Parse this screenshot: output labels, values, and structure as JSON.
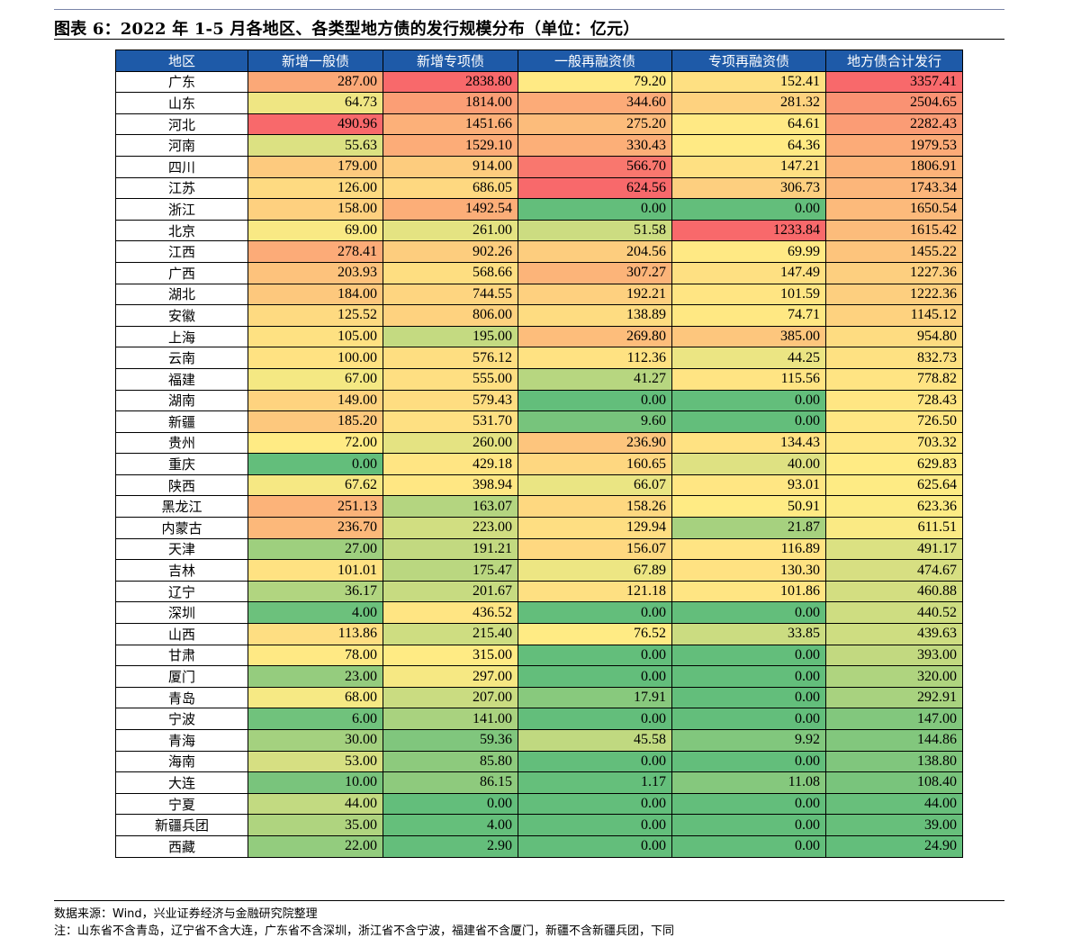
{
  "title": "图表 6：2022 年 1-5 月各地区、各类型地方债的发行规模分布（单位：亿元）",
  "table": {
    "headers": [
      "地区",
      "新增一般债",
      "新增专项债",
      "一般再融资债",
      "专项再融资债",
      "地方债合计发行"
    ],
    "rows": [
      [
        "广东",
        "287.00",
        "2838.80",
        "79.20",
        "152.41",
        "3357.41"
      ],
      [
        "山东",
        "64.73",
        "1814.00",
        "344.60",
        "281.32",
        "2504.65"
      ],
      [
        "河北",
        "490.96",
        "1451.66",
        "275.20",
        "64.61",
        "2282.43"
      ],
      [
        "河南",
        "55.63",
        "1529.10",
        "330.43",
        "64.36",
        "1979.53"
      ],
      [
        "四川",
        "179.00",
        "914.00",
        "566.70",
        "147.21",
        "1806.91"
      ],
      [
        "江苏",
        "126.00",
        "686.05",
        "624.56",
        "306.73",
        "1743.34"
      ],
      [
        "浙江",
        "158.00",
        "1492.54",
        "0.00",
        "0.00",
        "1650.54"
      ],
      [
        "北京",
        "69.00",
        "261.00",
        "51.58",
        "1233.84",
        "1615.42"
      ],
      [
        "江西",
        "278.41",
        "902.26",
        "204.56",
        "69.99",
        "1455.22"
      ],
      [
        "广西",
        "203.93",
        "568.66",
        "307.27",
        "147.49",
        "1227.36"
      ],
      [
        "湖北",
        "184.00",
        "744.55",
        "192.21",
        "101.59",
        "1222.36"
      ],
      [
        "安徽",
        "125.52",
        "806.00",
        "138.89",
        "74.71",
        "1145.12"
      ],
      [
        "上海",
        "105.00",
        "195.00",
        "269.80",
        "385.00",
        "954.80"
      ],
      [
        "云南",
        "100.00",
        "576.12",
        "112.36",
        "44.25",
        "832.73"
      ],
      [
        "福建",
        "67.00",
        "555.00",
        "41.27",
        "115.56",
        "778.82"
      ],
      [
        "湖南",
        "149.00",
        "579.43",
        "0.00",
        "0.00",
        "728.43"
      ],
      [
        "新疆",
        "185.20",
        "531.70",
        "9.60",
        "0.00",
        "726.50"
      ],
      [
        "贵州",
        "72.00",
        "260.00",
        "236.90",
        "134.43",
        "703.32"
      ],
      [
        "重庆",
        "0.00",
        "429.18",
        "160.65",
        "40.00",
        "629.83"
      ],
      [
        "陕西",
        "67.62",
        "398.94",
        "66.07",
        "93.01",
        "625.64"
      ],
      [
        "黑龙江",
        "251.13",
        "163.07",
        "158.26",
        "50.91",
        "623.36"
      ],
      [
        "内蒙古",
        "236.70",
        "223.00",
        "129.94",
        "21.87",
        "611.51"
      ],
      [
        "天津",
        "27.00",
        "191.21",
        "156.07",
        "116.89",
        "491.17"
      ],
      [
        "吉林",
        "101.01",
        "175.47",
        "67.89",
        "130.30",
        "474.67"
      ],
      [
        "辽宁",
        "36.17",
        "201.67",
        "121.18",
        "101.86",
        "460.88"
      ],
      [
        "深圳",
        "4.00",
        "436.52",
        "0.00",
        "0.00",
        "440.52"
      ],
      [
        "山西",
        "113.86",
        "215.40",
        "76.52",
        "33.85",
        "439.63"
      ],
      [
        "甘肃",
        "78.00",
        "315.00",
        "0.00",
        "0.00",
        "393.00"
      ],
      [
        "厦门",
        "23.00",
        "297.00",
        "0.00",
        "0.00",
        "320.00"
      ],
      [
        "青岛",
        "68.00",
        "207.00",
        "17.91",
        "0.00",
        "292.91"
      ],
      [
        "宁波",
        "6.00",
        "141.00",
        "0.00",
        "0.00",
        "147.00"
      ],
      [
        "青海",
        "30.00",
        "59.36",
        "45.58",
        "9.92",
        "144.86"
      ],
      [
        "海南",
        "53.00",
        "85.80",
        "0.00",
        "0.00",
        "138.80"
      ],
      [
        "大连",
        "10.00",
        "86.15",
        "1.17",
        "11.08",
        "108.40"
      ],
      [
        "宁夏",
        "44.00",
        "0.00",
        "0.00",
        "0.00",
        "44.00"
      ],
      [
        "新疆兵团",
        "35.00",
        "4.00",
        "0.00",
        "0.00",
        "39.00"
      ],
      [
        "西藏",
        "22.00",
        "2.90",
        "0.00",
        "0.00",
        "24.90"
      ]
    ]
  },
  "colors": {
    "header_bg": "#1e5aa8",
    "scale_low": "#63be7b",
    "scale_mid": "#ffeb84",
    "scale_high": "#f8696b"
  },
  "source": "数据来源：Wind，兴业证券经济与金融研究院整理",
  "footnote": "注：山东省不含青岛，辽宁省不含大连，广东省不含深圳，浙江省不含宁波，福建省不含厦门，新疆不含新疆兵团，下同"
}
